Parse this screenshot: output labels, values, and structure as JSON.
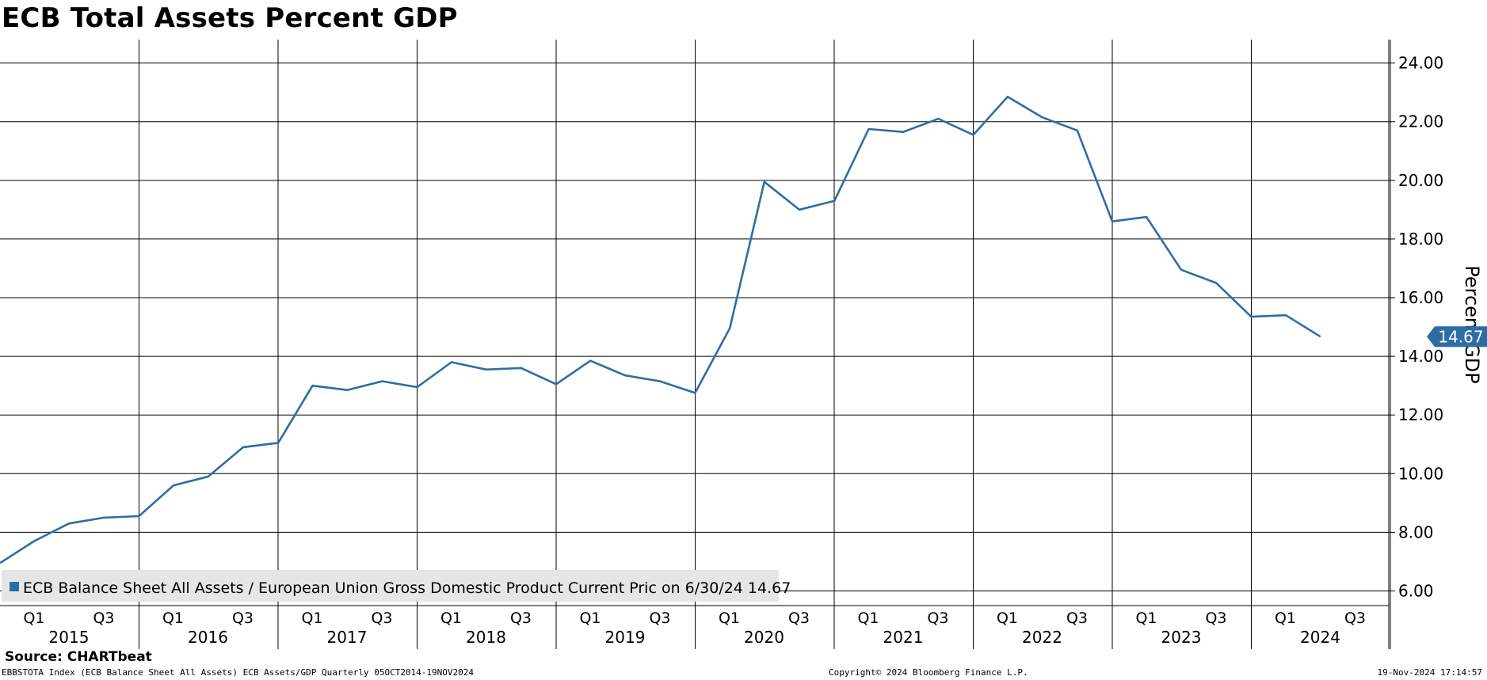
{
  "title": "ECB Total Assets Percent GDP",
  "source_label": "Source: CHARTbeat",
  "footer": {
    "left": "EBBSTOTA Index (ECB Balance Sheet All Assets) ECB Assets/GDP  Quarterly 05OCT2014-19NOV2024",
    "center": "Copyright© 2024 Bloomberg Finance L.P.",
    "right": "19-Nov-2024 17:14:57"
  },
  "colors": {
    "series": "#2e6da4",
    "grid": "#000000",
    "legend_bg": "#e6e6e6",
    "background": "#ffffff"
  },
  "chart_data": {
    "type": "line",
    "title": "ECB Total Assets Percent GDP",
    "ylabel": "Percent GDP",
    "xlabel": "",
    "ylim": [
      5.5,
      24.8
    ],
    "y_ticks": [
      "6.00",
      "8.00",
      "10.00",
      "12.00",
      "14.00",
      "16.00",
      "18.00",
      "20.00",
      "22.00",
      "24.00"
    ],
    "x_quarter_labels": [
      "Q1",
      "Q3"
    ],
    "x_years": [
      "2015",
      "2016",
      "2017",
      "2018",
      "2019",
      "2020",
      "2021",
      "2022",
      "2023",
      "2024"
    ],
    "grid": true,
    "legend_position": "bottom-left",
    "last_value_label": "14.67",
    "series": [
      {
        "name": "ECB Balance Sheet All Assets / European Union Gross Domestic Product Current Pric on 6/30/24 14.67",
        "x": [
          "2014-12-31",
          "2015-03-31",
          "2015-06-30",
          "2015-09-30",
          "2015-12-31",
          "2016-03-31",
          "2016-06-30",
          "2016-09-30",
          "2016-12-31",
          "2017-03-31",
          "2017-06-30",
          "2017-09-30",
          "2017-12-31",
          "2018-03-31",
          "2018-06-30",
          "2018-09-30",
          "2018-12-31",
          "2019-03-31",
          "2019-06-30",
          "2019-09-30",
          "2019-12-31",
          "2020-03-31",
          "2020-06-30",
          "2020-09-30",
          "2020-12-31",
          "2021-03-31",
          "2021-06-30",
          "2021-09-30",
          "2021-12-31",
          "2022-03-31",
          "2022-06-30",
          "2022-09-30",
          "2022-12-31",
          "2023-03-31",
          "2023-06-30",
          "2023-09-30",
          "2023-12-31",
          "2024-03-31",
          "2024-06-30"
        ],
        "values": [
          6.95,
          7.7,
          8.3,
          8.5,
          8.55,
          9.6,
          9.9,
          10.9,
          11.05,
          13.0,
          12.85,
          13.15,
          12.95,
          13.8,
          13.55,
          13.6,
          13.05,
          13.85,
          13.35,
          13.15,
          12.75,
          14.95,
          19.95,
          19.0,
          19.3,
          21.75,
          21.65,
          22.1,
          21.55,
          22.85,
          22.15,
          21.7,
          18.6,
          18.75,
          16.95,
          16.5,
          15.35,
          15.4,
          14.67
        ]
      }
    ]
  }
}
